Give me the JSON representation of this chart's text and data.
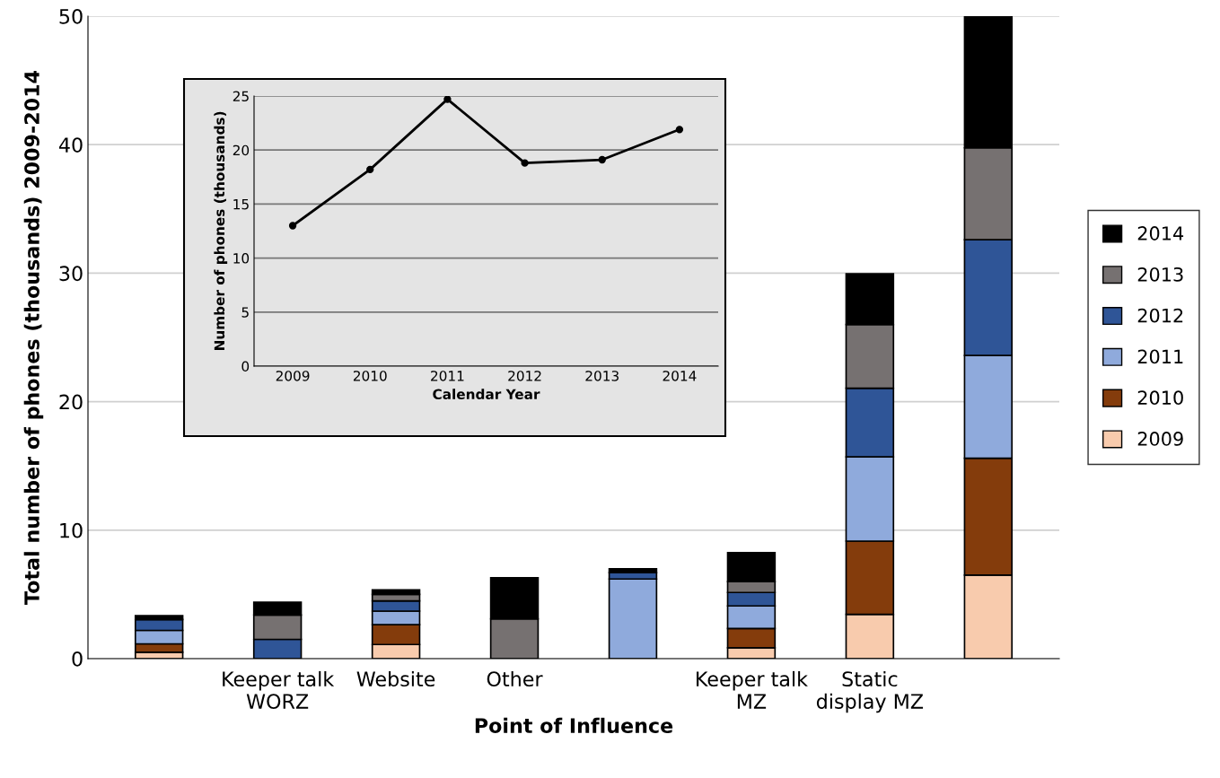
{
  "chart_data": [
    {
      "type": "bar",
      "stacked": true,
      "xlabel": "Point of Influence",
      "ylabel": "Total number of phones (thousands) 2009-2014",
      "categories": [
        null,
        "Keeper talk\nWORZ",
        "Website",
        "Other",
        null,
        "Keeper talk\nMZ",
        "Static\ndisplay MZ",
        null
      ],
      "series": [
        {
          "name": "2009",
          "color": "#f8cbad",
          "values": [
            0.5,
            0,
            1.1,
            0,
            0,
            0.85,
            3.45,
            6.5
          ]
        },
        {
          "name": "2010",
          "color": "#843c0c",
          "values": [
            0.65,
            0,
            1.55,
            0,
            0,
            1.5,
            5.7,
            9.1
          ]
        },
        {
          "name": "2011",
          "color": "#8faadc",
          "values": [
            1.05,
            0,
            1.05,
            0,
            6.2,
            1.75,
            6.55,
            8.0
          ]
        },
        {
          "name": "2012",
          "color": "#2f5597",
          "values": [
            0.85,
            1.5,
            0.8,
            0,
            0.5,
            1.05,
            5.35,
            9.0
          ]
        },
        {
          "name": "2013",
          "color": "#767171",
          "values": [
            0,
            1.9,
            0.5,
            3.1,
            0,
            0.85,
            4.95,
            7.15
          ]
        },
        {
          "name": "2014",
          "color": "#000000",
          "values": [
            0.3,
            1.0,
            0.35,
            3.2,
            0.3,
            2.25,
            3.95,
            10.25
          ]
        }
      ],
      "ylim": [
        0,
        50
      ],
      "yticks": [
        0,
        10,
        20,
        30,
        40,
        50
      ],
      "grid": "y",
      "legend": "right"
    },
    {
      "type": "line",
      "xlabel": "Calendar Year",
      "ylabel": "Number of phones (thousands)",
      "categories": [
        "2009",
        "2010",
        "2011",
        "2012",
        "2013",
        "2014"
      ],
      "series": [
        {
          "color": "#000000",
          "values": [
            13.0,
            18.2,
            24.7,
            18.8,
            19.1,
            21.9
          ]
        }
      ],
      "ylim": [
        0,
        25
      ],
      "yticks": [
        0,
        5,
        10,
        15,
        20,
        25
      ],
      "grid": "y",
      "marker": "circle",
      "line_style": "solid"
    }
  ]
}
